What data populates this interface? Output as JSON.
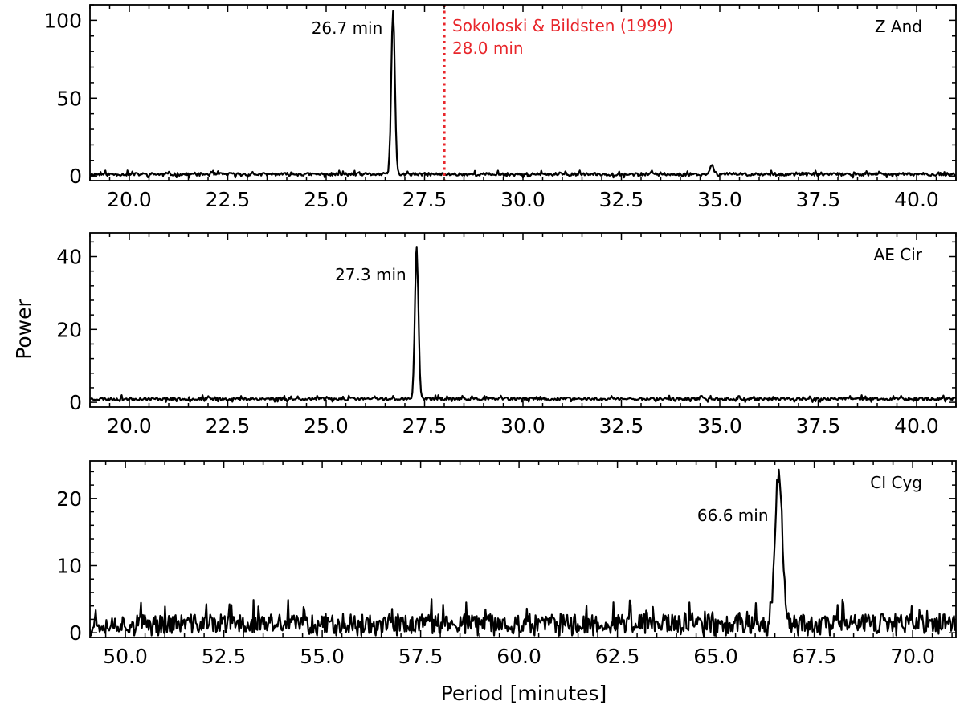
{
  "figure": {
    "ylabel": "Power",
    "xlabel": "Period [minutes]"
  },
  "chart_data": [
    {
      "type": "line",
      "panel_label": "Z And",
      "xlim": [
        19.0,
        41.0
      ],
      "ylim": [
        -3,
        110
      ],
      "xticks": [
        20.0,
        22.5,
        25.0,
        27.5,
        30.0,
        32.5,
        35.0,
        37.5,
        40.0
      ],
      "xtick_labels": [
        "20.0",
        "22.5",
        "25.0",
        "27.5",
        "30.0",
        "32.5",
        "35.0",
        "37.5",
        "40.0"
      ],
      "yticks": [
        0,
        50,
        100
      ],
      "ytick_labels": [
        "0",
        "50",
        "100"
      ],
      "baseline": 1.0,
      "noise_amp": 2.2,
      "peaks": [
        {
          "x": 26.7,
          "y": 106,
          "width": 0.045
        },
        {
          "x": 34.8,
          "y": 7,
          "width": 0.05
        }
      ],
      "annotations": [
        {
          "text": "26.7 min",
          "x": 26.7,
          "y": 95
        }
      ],
      "reference": {
        "x": 28.0,
        "color": "#e8262b",
        "lines": [
          "Sokoloski & Bildsten (1999)",
          "28.0 min"
        ]
      },
      "seed": 11
    },
    {
      "type": "line",
      "panel_label": "AE Cir",
      "xlim": [
        19.0,
        41.0
      ],
      "ylim": [
        -1.3,
        46.5
      ],
      "xticks": [
        20.0,
        22.5,
        25.0,
        27.5,
        30.0,
        32.5,
        35.0,
        37.5,
        40.0
      ],
      "xtick_labels": [
        "20.0",
        "22.5",
        "25.0",
        "27.5",
        "30.0",
        "32.5",
        "35.0",
        "37.5",
        "40.0"
      ],
      "yticks": [
        0,
        20,
        40
      ],
      "ytick_labels": [
        "0",
        "20",
        "40"
      ],
      "baseline": 0.9,
      "noise_amp": 0.9,
      "peaks": [
        {
          "x": 27.3,
          "y": 42.5,
          "width": 0.045
        }
      ],
      "annotations": [
        {
          "text": "27.3 min",
          "x": 27.3,
          "y": 35
        }
      ],
      "reference": null,
      "seed": 23
    },
    {
      "type": "line",
      "panel_label": "CI Cyg",
      "xlim": [
        49.1,
        71.1
      ],
      "ylim": [
        -0.7,
        25.6
      ],
      "xticks": [
        50.0,
        52.5,
        55.0,
        57.5,
        60.0,
        62.5,
        65.0,
        67.5,
        70.0
      ],
      "xtick_labels": [
        "50.0",
        "52.5",
        "55.0",
        "57.5",
        "60.0",
        "62.5",
        "65.0",
        "67.5",
        "70.0"
      ],
      "yticks": [
        0,
        10,
        20
      ],
      "ytick_labels": [
        "0",
        "10",
        "20"
      ],
      "baseline": 1.2,
      "noise_amp": 3.2,
      "peaks": [
        {
          "x": 66.6,
          "y": 24.3,
          "width": 0.09
        }
      ],
      "annotations": [
        {
          "text": "66.6 min",
          "x": 66.6,
          "y": 17.5
        }
      ],
      "reference": null,
      "seed": 37
    }
  ]
}
